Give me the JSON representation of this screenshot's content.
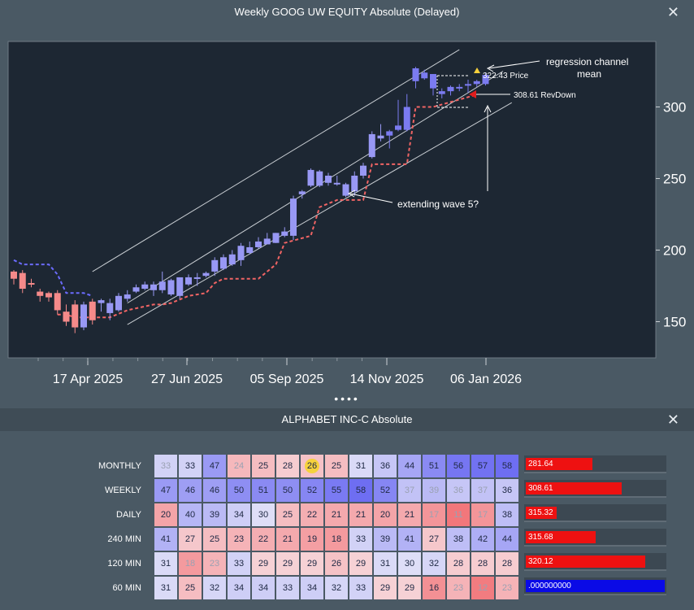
{
  "chart_window": {
    "title": "Weekly GOOG UW EQUITY Absolute   (Delayed)",
    "close_glyph": "✕"
  },
  "chart_data": {
    "type": "candlestick",
    "title": "",
    "xlabel": "",
    "ylabel": "",
    "ylim": [
      125,
      345
    ],
    "y_ticks": [
      150,
      200,
      250,
      300
    ],
    "x_tick_labels": [
      "17 Apr 2025",
      "27 Jun 2025",
      "05 Sep 2025",
      "14 Nov 2025",
      "06 Jan 2026"
    ],
    "grid": false,
    "candles": [
      {
        "o": 180,
        "h": 186,
        "l": 176,
        "c": 185,
        "up": false
      },
      {
        "o": 184,
        "h": 186,
        "l": 170,
        "c": 173,
        "up": false
      },
      {
        "o": 177,
        "h": 180,
        "l": 174,
        "c": 176,
        "up": false
      },
      {
        "o": 171,
        "h": 173,
        "l": 164,
        "c": 168,
        "up": false
      },
      {
        "o": 170,
        "h": 171,
        "l": 164,
        "c": 167,
        "up": false
      },
      {
        "o": 170,
        "h": 172,
        "l": 155,
        "c": 158,
        "up": false
      },
      {
        "o": 157,
        "h": 162,
        "l": 147,
        "c": 150,
        "up": false
      },
      {
        "o": 162,
        "h": 165,
        "l": 142,
        "c": 146,
        "up": false
      },
      {
        "o": 146,
        "h": 164,
        "l": 144,
        "c": 162,
        "up": true
      },
      {
        "o": 151,
        "h": 166,
        "l": 148,
        "c": 164,
        "up": false
      },
      {
        "o": 163,
        "h": 166,
        "l": 157,
        "c": 165,
        "up": true
      },
      {
        "o": 156,
        "h": 166,
        "l": 151,
        "c": 163,
        "up": true
      },
      {
        "o": 158,
        "h": 170,
        "l": 157,
        "c": 168,
        "up": true
      },
      {
        "o": 166,
        "h": 172,
        "l": 164,
        "c": 169,
        "up": true
      },
      {
        "o": 171,
        "h": 176,
        "l": 170,
        "c": 174,
        "up": true
      },
      {
        "o": 173,
        "h": 178,
        "l": 172,
        "c": 176,
        "up": true
      },
      {
        "o": 176,
        "h": 178,
        "l": 168,
        "c": 172,
        "up": true
      },
      {
        "o": 172,
        "h": 185,
        "l": 170,
        "c": 178,
        "up": true
      },
      {
        "o": 169,
        "h": 180,
        "l": 168,
        "c": 179,
        "up": true
      },
      {
        "o": 168,
        "h": 181,
        "l": 166,
        "c": 181,
        "up": true
      },
      {
        "o": 176,
        "h": 183,
        "l": 175,
        "c": 181,
        "up": true
      },
      {
        "o": 180,
        "h": 184,
        "l": 175,
        "c": 181,
        "up": true
      },
      {
        "o": 182,
        "h": 185,
        "l": 181,
        "c": 184,
        "up": true
      },
      {
        "o": 185,
        "h": 195,
        "l": 182,
        "c": 193,
        "up": true
      },
      {
        "o": 187,
        "h": 197,
        "l": 186,
        "c": 195,
        "up": true
      },
      {
        "o": 190,
        "h": 200,
        "l": 189,
        "c": 197,
        "up": true
      },
      {
        "o": 193,
        "h": 205,
        "l": 189,
        "c": 203,
        "up": true
      },
      {
        "o": 198,
        "h": 206,
        "l": 197,
        "c": 202,
        "up": true
      },
      {
        "o": 202,
        "h": 209,
        "l": 201,
        "c": 206,
        "up": true
      },
      {
        "o": 204,
        "h": 212,
        "l": 205,
        "c": 208,
        "up": true
      },
      {
        "o": 205,
        "h": 212,
        "l": 205,
        "c": 212,
        "up": true
      },
      {
        "o": 210,
        "h": 216,
        "l": 209,
        "c": 213,
        "up": true
      },
      {
        "o": 210,
        "h": 238,
        "l": 207,
        "c": 236,
        "up": true
      },
      {
        "o": 239,
        "h": 242,
        "l": 236,
        "c": 241,
        "up": true
      },
      {
        "o": 245,
        "h": 257,
        "l": 244,
        "c": 256,
        "up": true
      },
      {
        "o": 245,
        "h": 256,
        "l": 244,
        "c": 255,
        "up": true
      },
      {
        "o": 247,
        "h": 254,
        "l": 245,
        "c": 252,
        "up": true
      },
      {
        "o": 246,
        "h": 252,
        "l": 245,
        "c": 247,
        "up": true
      },
      {
        "o": 238,
        "h": 247,
        "l": 237,
        "c": 246,
        "up": true
      },
      {
        "o": 241,
        "h": 255,
        "l": 238,
        "c": 252,
        "up": true
      },
      {
        "o": 252,
        "h": 261,
        "l": 250,
        "c": 259,
        "up": true
      },
      {
        "o": 265,
        "h": 283,
        "l": 264,
        "c": 281,
        "up": true
      },
      {
        "o": 278,
        "h": 288,
        "l": 276,
        "c": 280,
        "up": true
      },
      {
        "o": 280,
        "h": 284,
        "l": 271,
        "c": 283,
        "up": true
      },
      {
        "o": 284,
        "h": 305,
        "l": 283,
        "c": 287,
        "up": true
      },
      {
        "o": 284,
        "h": 309,
        "l": 283,
        "c": 300,
        "up": true
      },
      {
        "o": 318,
        "h": 328,
        "l": 313,
        "c": 327,
        "up": true
      },
      {
        "o": 320,
        "h": 326,
        "l": 319,
        "c": 324,
        "up": true
      },
      {
        "o": 313,
        "h": 323,
        "l": 308,
        "c": 323,
        "up": true
      },
      {
        "o": 311,
        "h": 313,
        "l": 306,
        "c": 309,
        "up": true
      },
      {
        "o": 311,
        "h": 315,
        "l": 308,
        "c": 314,
        "up": true
      },
      {
        "o": 313,
        "h": 316,
        "l": 311,
        "c": 314,
        "up": true
      },
      {
        "o": 315,
        "h": 319,
        "l": 310,
        "c": 316,
        "up": true
      },
      {
        "o": 316,
        "h": 319,
        "l": 314,
        "c": 318,
        "up": true
      },
      {
        "o": 316,
        "h": 324,
        "l": 315,
        "c": 322.43,
        "up": true
      }
    ],
    "trailing_stop_dashed_red": [
      {
        "i": 5,
        "v": 155
      },
      {
        "i": 6,
        "v": 155
      },
      {
        "i": 7,
        "v": 153
      },
      {
        "i": 8,
        "v": 153
      },
      {
        "i": 9,
        "v": 153
      },
      {
        "i": 11,
        "v": 153
      },
      {
        "i": 13,
        "v": 158
      },
      {
        "i": 16,
        "v": 162
      },
      {
        "i": 17,
        "v": 162
      },
      {
        "i": 18,
        "v": 163
      },
      {
        "i": 20,
        "v": 168
      },
      {
        "i": 22,
        "v": 170
      },
      {
        "i": 23,
        "v": 177
      },
      {
        "i": 24,
        "v": 180
      },
      {
        "i": 28,
        "v": 180
      },
      {
        "i": 30,
        "v": 190
      },
      {
        "i": 31,
        "v": 205
      },
      {
        "i": 34,
        "v": 210
      },
      {
        "i": 35,
        "v": 230
      },
      {
        "i": 37,
        "v": 235
      },
      {
        "i": 40,
        "v": 235
      },
      {
        "i": 41,
        "v": 260
      },
      {
        "i": 42,
        "v": 260
      },
      {
        "i": 45,
        "v": 260
      },
      {
        "i": 46,
        "v": 300
      },
      {
        "i": 48,
        "v": 300
      },
      {
        "i": 53,
        "v": 308.61
      }
    ],
    "trailing_stop_dashed_blue": [
      {
        "i": 0,
        "v": 193
      },
      {
        "i": 1,
        "v": 190
      },
      {
        "i": 4,
        "v": 190
      },
      {
        "i": 5,
        "v": 183
      },
      {
        "i": 6,
        "v": 170
      },
      {
        "i": 8,
        "v": 170
      },
      {
        "i": 9,
        "v": 168
      }
    ],
    "regression_channel": {
      "upper": [
        {
          "i": 9,
          "v": 185
        },
        {
          "i": 51,
          "v": 340
        }
      ],
      "middle": [
        {
          "i": 13,
          "v": 163
        },
        {
          "i": 56,
          "v": 325
        }
      ],
      "lower": [
        {
          "i": 13,
          "v": 148
        },
        {
          "i": 57,
          "v": 303
        }
      ]
    },
    "price_label": "322.43  Price",
    "revdown_label": "308.61 RevDown",
    "annotations": [
      "regression channel\nmean",
      "extending wave 5?"
    ]
  },
  "heatmap_panel": {
    "title": "ALPHABET INC-C Absolute",
    "close_glyph": "✕",
    "rows": [
      {
        "label": "MONTHLY",
        "values": [
          33,
          33,
          47,
          24,
          25,
          28,
          26,
          25,
          31,
          36,
          44,
          51,
          56,
          57,
          58
        ],
        "muted": [
          0,
          3
        ],
        "highlight": 6,
        "bar_value": "281.64",
        "bar_fraction": 0.48,
        "bar_color": "#ee1111"
      },
      {
        "label": "WEEKLY",
        "values": [
          47,
          46,
          46,
          50,
          51,
          50,
          52,
          55,
          58,
          52,
          37,
          39,
          36,
          37,
          36
        ],
        "muted": [
          10,
          11,
          12,
          13
        ],
        "highlight": -1,
        "bar_value": "308.61",
        "bar_fraction": 0.69,
        "bar_color": "#ee1111"
      },
      {
        "label": "DAILY",
        "values": [
          20,
          40,
          39,
          34,
          30,
          25,
          22,
          21,
          21,
          20,
          21,
          17,
          11,
          17,
          38
        ],
        "muted": [
          11,
          12,
          13
        ],
        "highlight": -1,
        "bar_value": "315.32",
        "bar_fraction": 0.22,
        "bar_color": "#ee1111"
      },
      {
        "label": "240 MIN",
        "values": [
          41,
          27,
          25,
          23,
          22,
          21,
          19,
          18,
          33,
          39,
          41,
          27,
          38,
          42,
          44
        ],
        "muted": [],
        "highlight": -1,
        "bar_value": "315.68",
        "bar_fraction": 0.5,
        "bar_color": "#ee1111"
      },
      {
        "label": "120 MIN",
        "values": [
          31,
          18,
          23,
          33,
          29,
          29,
          29,
          26,
          29,
          31,
          30,
          32,
          28,
          28,
          28
        ],
        "muted": [
          1,
          2
        ],
        "highlight": -1,
        "bar_value": "320.12",
        "bar_fraction": 0.86,
        "bar_color": "#ee1111"
      },
      {
        "label": "60 MIN",
        "values": [
          31,
          25,
          32,
          34,
          34,
          33,
          34,
          32,
          33,
          29,
          29,
          16,
          23,
          12,
          23
        ],
        "muted": [
          12,
          13,
          14
        ],
        "highlight": -1,
        "bar_value": ".000000000",
        "bar_fraction": 1.0,
        "bar_color": "#0a0ae6"
      }
    ]
  }
}
